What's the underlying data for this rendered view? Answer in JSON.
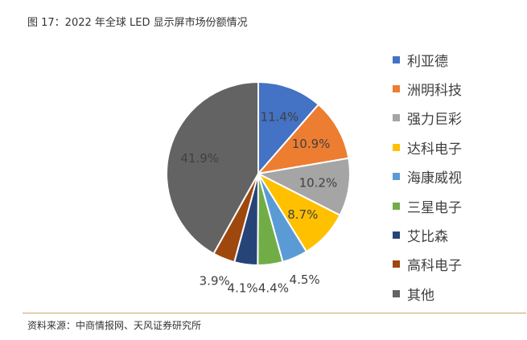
{
  "figure": {
    "title": "图 17：2022 年全球 LED 显示屏市场份额情况",
    "source": "资料来源：中商情报网、天风证券研究所"
  },
  "chart_data": {
    "type": "pie",
    "unit": "%",
    "start_angle_deg": 0,
    "direction": "clockwise",
    "legend_position": "right",
    "slices": [
      {
        "name": "利亚德",
        "value": 11.4,
        "label": "11.4%",
        "color": "#4472c4"
      },
      {
        "name": "洲明科技",
        "value": 10.9,
        "label": "10.9%",
        "color": "#ed7d31"
      },
      {
        "name": "强力巨彩",
        "value": 10.2,
        "label": "10.2%",
        "color": "#a5a5a5"
      },
      {
        "name": "达科电子",
        "value": 8.7,
        "label": "8.7%",
        "color": "#ffc000"
      },
      {
        "name": "海康威视",
        "value": 4.5,
        "label": "4.5%",
        "color": "#5b9bd5"
      },
      {
        "name": "三星电子",
        "value": 4.4,
        "label": "4.4%",
        "color": "#70ad47"
      },
      {
        "name": "艾比森",
        "value": 4.1,
        "label": "4.1%",
        "color": "#264478"
      },
      {
        "name": "高科电子",
        "value": 3.9,
        "label": "3.9%",
        "color": "#9e480e"
      },
      {
        "name": "其他",
        "value": 41.9,
        "label": "41.9%",
        "color": "#636363"
      }
    ]
  }
}
